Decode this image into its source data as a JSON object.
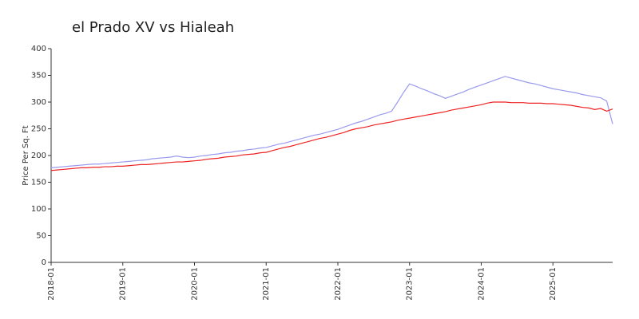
{
  "chart_data": {
    "type": "line",
    "title": "el Prado XV vs Hialeah",
    "y_label": "Price Per Sq. Ft",
    "x": [
      "2018-01",
      "2018-02",
      "2018-03",
      "2018-04",
      "2018-05",
      "2018-06",
      "2018-07",
      "2018-08",
      "2018-09",
      "2018-10",
      "2018-11",
      "2018-12",
      "2019-01",
      "2019-02",
      "2019-03",
      "2019-04",
      "2019-05",
      "2019-06",
      "2019-07",
      "2019-08",
      "2019-09",
      "2019-10",
      "2019-11",
      "2019-12",
      "2020-01",
      "2020-02",
      "2020-03",
      "2020-04",
      "2020-05",
      "2020-06",
      "2020-07",
      "2020-08",
      "2020-09",
      "2020-10",
      "2020-11",
      "2020-12",
      "2021-01",
      "2021-02",
      "2021-03",
      "2021-04",
      "2021-05",
      "2021-06",
      "2021-07",
      "2021-08",
      "2021-09",
      "2021-10",
      "2021-11",
      "2021-12",
      "2022-01",
      "2022-02",
      "2022-03",
      "2022-04",
      "2022-05",
      "2022-06",
      "2022-07",
      "2022-08",
      "2022-09",
      "2022-10",
      "2022-11",
      "2022-12",
      "2023-01",
      "2023-02",
      "2023-03",
      "2023-04",
      "2023-05",
      "2023-06",
      "2023-07",
      "2023-08",
      "2023-09",
      "2023-10",
      "2023-11",
      "2023-12",
      "2024-01",
      "2024-02",
      "2024-03",
      "2024-04",
      "2024-05",
      "2024-06",
      "2024-07",
      "2024-08",
      "2024-09",
      "2024-10",
      "2024-11",
      "2024-12",
      "2025-01",
      "2025-02",
      "2025-03",
      "2025-04",
      "2025-05",
      "2025-06",
      "2025-07",
      "2025-08",
      "2025-09",
      "2025-10",
      "2025-11"
    ],
    "series": [
      {
        "color": "#9a9aee",
        "values": [
          177,
          178,
          179,
          180,
          181,
          182,
          183,
          184,
          184,
          185,
          186,
          187,
          188,
          189,
          190,
          191,
          192,
          194,
          195,
          196,
          197,
          199,
          197,
          196,
          197,
          199,
          200,
          202,
          203,
          205,
          206,
          208,
          209,
          211,
          212,
          214,
          215,
          218,
          221,
          223,
          226,
          229,
          232,
          235,
          238,
          240,
          243,
          246,
          249,
          253,
          257,
          261,
          264,
          268,
          272,
          276,
          279,
          283,
          300,
          318,
          334,
          330,
          325,
          321,
          316,
          312,
          307,
          311,
          315,
          319,
          324,
          328,
          332,
          336,
          340,
          344,
          348,
          345,
          342,
          339,
          336,
          334,
          331,
          328,
          325,
          323,
          321,
          319,
          317,
          314,
          312,
          310,
          308,
          302,
          259
        ]
      },
      {
        "color": "#ee2222",
        "values": [
          172,
          173,
          174,
          175,
          176,
          177,
          177,
          178,
          178,
          179,
          179,
          180,
          180,
          181,
          182,
          183,
          183,
          184,
          185,
          186,
          187,
          188,
          188,
          189,
          190,
          191,
          193,
          194,
          195,
          197,
          198,
          199,
          201,
          202,
          203,
          205,
          206,
          209,
          212,
          215,
          217,
          220,
          223,
          226,
          229,
          232,
          234,
          237,
          240,
          243,
          247,
          250,
          252,
          254,
          257,
          259,
          261,
          263,
          266,
          268,
          270,
          272,
          274,
          276,
          278,
          280,
          282,
          285,
          287,
          289,
          291,
          293,
          295,
          298,
          300,
          300,
          300,
          299,
          299,
          299,
          298,
          298,
          298,
          297,
          297,
          296,
          295,
          294,
          292,
          290,
          289,
          286,
          288,
          283,
          287
        ]
      }
    ],
    "xticks": [
      "2018-01",
      "2019-01",
      "2020-01",
      "2021-01",
      "2022-01",
      "2023-01",
      "2024-01",
      "2025-01"
    ],
    "ylim": [
      0,
      400
    ],
    "yticks": [
      0,
      50,
      100,
      150,
      200,
      250,
      300,
      350,
      400
    ],
    "grid": false
  }
}
